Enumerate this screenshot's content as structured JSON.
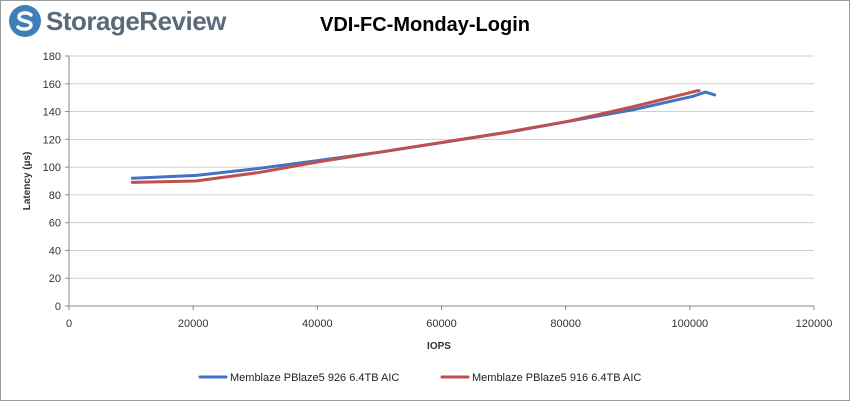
{
  "logo": {
    "text": "StorageReview",
    "icon": "storagereview-logo-icon",
    "colors": {
      "mark": "#3f7fb7",
      "text": "#5a6a78"
    }
  },
  "chart_data": {
    "type": "line",
    "title": "VDI-FC-Monday-Login",
    "xlabel": "IOPS",
    "ylabel": "Latency (µs)",
    "xlim": [
      0,
      120000
    ],
    "ylim": [
      0,
      180
    ],
    "xticks": [
      0,
      20000,
      40000,
      60000,
      80000,
      100000,
      120000
    ],
    "yticks": [
      0,
      20,
      40,
      60,
      80,
      100,
      120,
      140,
      160,
      180
    ],
    "grid": "horizontal",
    "legend_position": "bottom",
    "series": [
      {
        "name": "Memblaze PBlaze5 926 6.4TB AIC",
        "color": "#4472c4",
        "x": [
          10200,
          20500,
          30500,
          40500,
          50500,
          60500,
          70500,
          80500,
          90500,
          100500,
          102500,
          104000
        ],
        "y": [
          92,
          94,
          99,
          105,
          111,
          118,
          125,
          133,
          141,
          151,
          154,
          152
        ]
      },
      {
        "name": "Memblaze PBlaze5 916 6.4TB AIC",
        "color": "#c0504d",
        "x": [
          10200,
          20400,
          30400,
          40400,
          50400,
          60400,
          70400,
          80400,
          90400,
          100400,
          101200,
          101500
        ],
        "y": [
          89,
          90,
          96,
          104,
          111,
          118,
          125,
          133,
          143,
          154,
          155,
          155
        ]
      }
    ]
  }
}
